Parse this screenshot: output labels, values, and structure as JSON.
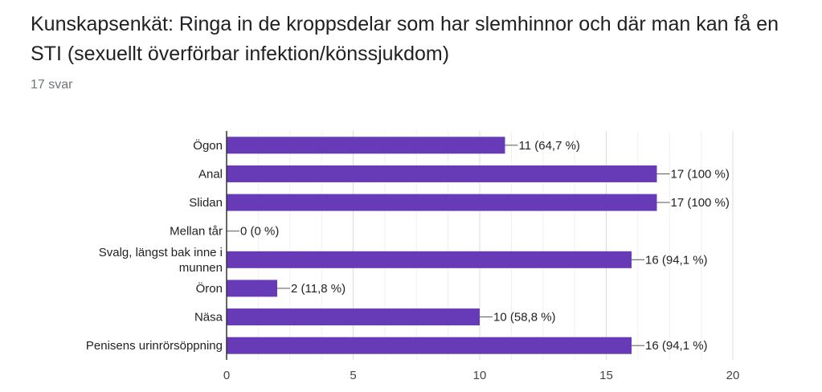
{
  "header": {
    "title": "Kunskapsenkät: Ringa in de kroppsdelar som har slemhinnor och där man kan få en STI (sexuellt överförbar infektion/könssjukdom)",
    "responses": "17 svar"
  },
  "chart_data": {
    "type": "bar",
    "orientation": "horizontal",
    "categories": [
      [
        "Ögon"
      ],
      [
        "Anal"
      ],
      [
        "Slidan"
      ],
      [
        "Mellan tår"
      ],
      [
        "Svalg, längst bak inne i",
        "munnen"
      ],
      [
        "Öron"
      ],
      [
        "Näsa"
      ],
      [
        "Penisens urinrörsöppning"
      ]
    ],
    "values": [
      11,
      17,
      17,
      0,
      16,
      2,
      10,
      16
    ],
    "data_labels": [
      "11 (64,7 %)",
      "17 (100 %)",
      "17 (100 %)",
      "0 (0 %)",
      "16 (94,1 %)",
      "2 (11,8 %)",
      "10 (58,8 %)",
      "16 (94,1 %)"
    ],
    "x_ticks": [
      0,
      5,
      10,
      15,
      20
    ],
    "xlim": [
      0,
      20
    ],
    "grid": true,
    "bar_color": "#673ab7",
    "grid_color": "#e8e8e8",
    "axis_color": "#333333"
  }
}
